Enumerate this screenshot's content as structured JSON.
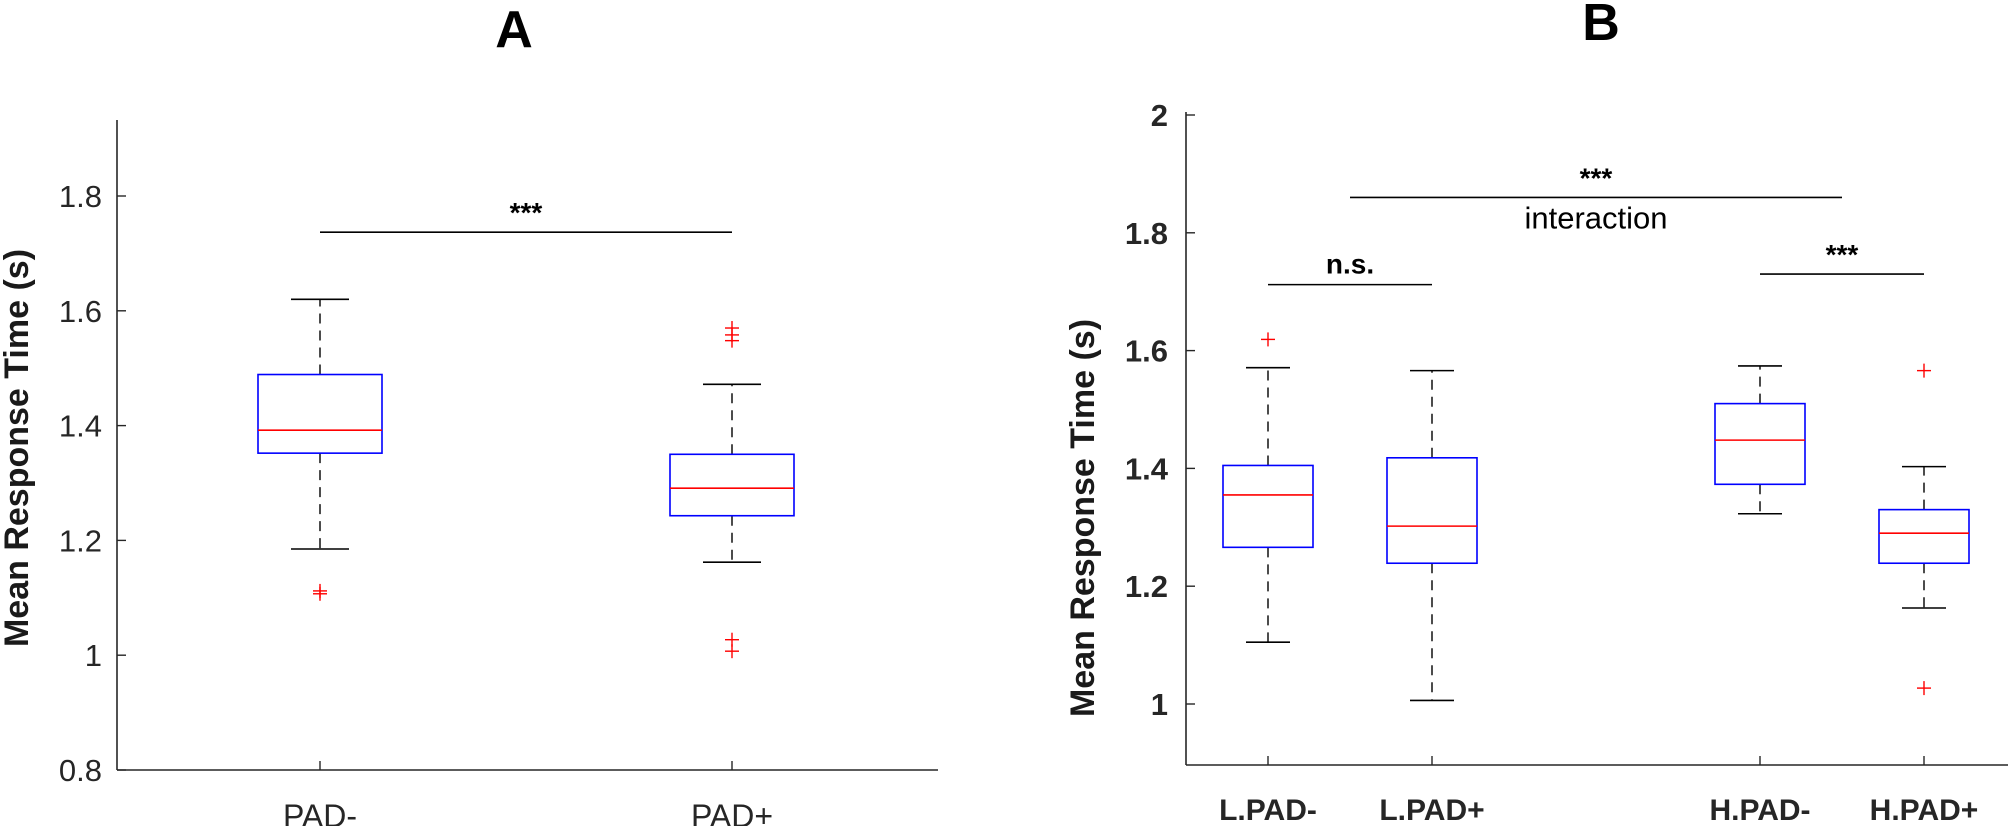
{
  "chart_data": [
    {
      "panel": "A",
      "type": "box",
      "ylabel": "Mean Response Time (s)",
      "ylim": [
        0.8,
        1.95
      ],
      "yticks": [
        0.8,
        1.0,
        1.2,
        1.4,
        1.6,
        1.8
      ],
      "ytick_labels": [
        "0.8",
        "1",
        "1.2",
        "1.4",
        "1.6",
        "1.8"
      ],
      "categories": [
        "PAD-",
        "PAD+"
      ],
      "boxes": [
        {
          "label": "PAD-",
          "whisker_low": 1.185,
          "q1": 1.352,
          "median": 1.392,
          "q3": 1.489,
          "whisker_high": 1.62,
          "outliers": [
            1.107,
            1.112
          ]
        },
        {
          "label": "PAD+",
          "whisker_low": 1.162,
          "q1": 1.243,
          "median": 1.291,
          "q3": 1.35,
          "whisker_high": 1.472,
          "outliers": [
            1.007,
            1.027,
            1.548,
            1.558,
            1.57
          ]
        }
      ],
      "annotations": [
        {
          "text": "***",
          "from": 0,
          "to": 1,
          "y": 1.737,
          "kind": "bracket"
        }
      ]
    },
    {
      "panel": "B",
      "type": "box",
      "ylabel": "Mean Response Time (s)",
      "ylim": [
        0.9,
        2.0
      ],
      "yticks": [
        1.0,
        1.2,
        1.4,
        1.6,
        1.8,
        2.0
      ],
      "ytick_labels": [
        "1",
        "1.2",
        "1.4",
        "1.6",
        "1.8",
        "2"
      ],
      "categories": [
        "L.PAD-",
        "L.PAD+",
        "H.PAD-",
        "H.PAD+"
      ],
      "positions": [
        1,
        2,
        4,
        5
      ],
      "boxes": [
        {
          "label": "L.PAD-",
          "whisker_low": 1.105,
          "q1": 1.266,
          "median": 1.355,
          "q3": 1.405,
          "whisker_high": 1.571,
          "outliers": [
            1.619
          ]
        },
        {
          "label": "L.PAD+",
          "whisker_low": 1.006,
          "q1": 1.239,
          "median": 1.302,
          "q3": 1.418,
          "whisker_high": 1.566,
          "outliers": []
        },
        {
          "label": "H.PAD-",
          "whisker_low": 1.323,
          "q1": 1.373,
          "median": 1.448,
          "q3": 1.51,
          "whisker_high": 1.574,
          "outliers": []
        },
        {
          "label": "H.PAD+",
          "whisker_low": 1.163,
          "q1": 1.239,
          "median": 1.29,
          "q3": 1.33,
          "whisker_high": 1.403,
          "outliers": [
            1.027,
            1.566
          ]
        }
      ],
      "annotations": [
        {
          "text": "n.s.",
          "from": 0,
          "to": 1,
          "y": 1.712,
          "kind": "bracket"
        },
        {
          "text": "***",
          "from": 2,
          "to": 3,
          "y": 1.73,
          "kind": "bracket"
        },
        {
          "text": "***",
          "sub": "interaction",
          "from_pos": 1.5,
          "to_pos": 4.5,
          "y": 1.86,
          "kind": "wide"
        }
      ]
    }
  ],
  "colors": {
    "box": "#0000ff",
    "median": "#ff0000",
    "outlier": "#ff0000",
    "whisker": "#000000",
    "axis": "#262626"
  }
}
